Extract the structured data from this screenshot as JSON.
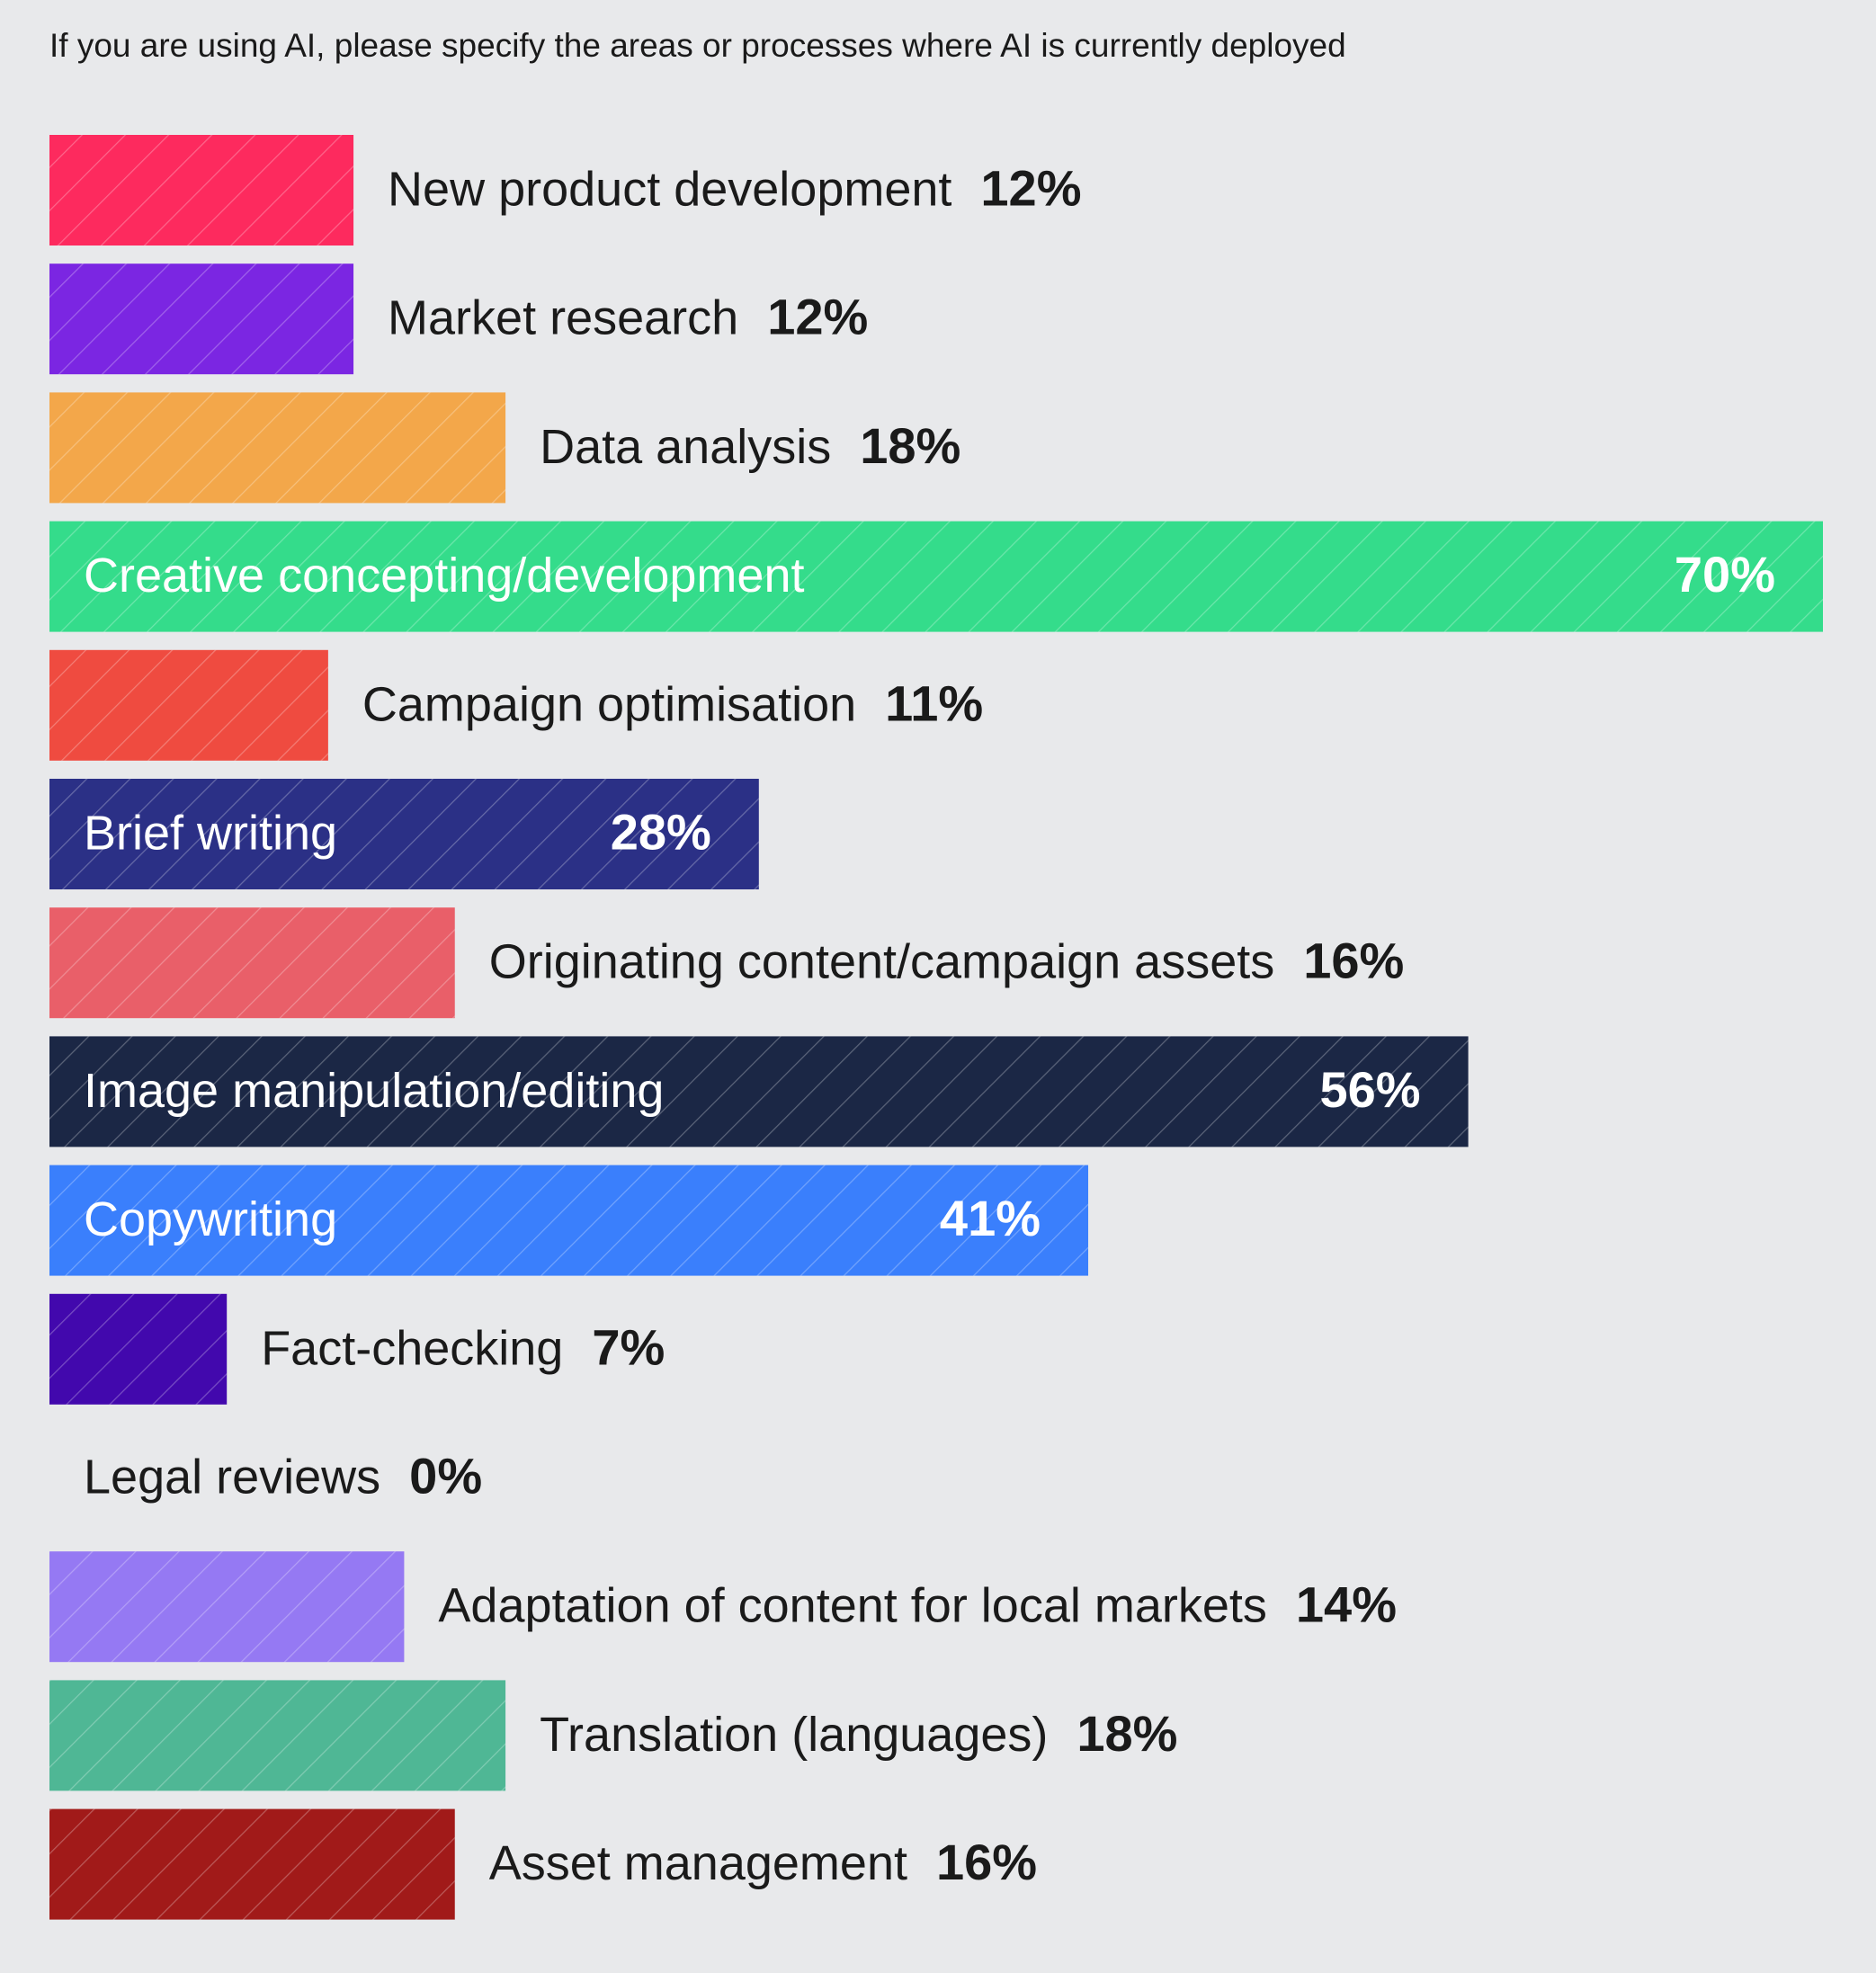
{
  "chart_data": {
    "type": "bar",
    "orientation": "horizontal",
    "title": "If you are using AI, please specify the areas or processes where AI is currently deployed",
    "unit": "%",
    "xlim": [
      0,
      70
    ],
    "grid": false,
    "legend": "none",
    "categories": [
      "New product development",
      "Market research",
      "Data analysis",
      "Creative concepting/development",
      "Campaign optimisation",
      "Brief writing",
      "Originating content/campaign assets",
      "Image manipulation/editing",
      "Copywriting",
      "Fact-checking",
      "Legal reviews",
      "Adaptation of content for local markets",
      "Translation (languages)",
      "Asset management"
    ],
    "values": [
      12,
      12,
      18,
      70,
      11,
      28,
      16,
      56,
      41,
      7,
      0,
      14,
      18,
      16
    ],
    "value_labels": [
      "12%",
      "12%",
      "18%",
      "70%",
      "11%",
      "28%",
      "16%",
      "56%",
      "41%",
      "7%",
      "0%",
      "14%",
      "18%",
      "16%"
    ],
    "colors": [
      "#fd2a5e",
      "#7b26e2",
      "#f3a74a",
      "#34dc8b",
      "#ef4b40",
      "#2b3086",
      "#e95f69",
      "#1b2745",
      "#3a7ffc",
      "#4208ad",
      "#e8e9eb",
      "#9579f3",
      "#4fb795",
      "#a11a19"
    ],
    "label_inside": [
      false,
      false,
      false,
      true,
      false,
      true,
      false,
      true,
      true,
      false,
      false,
      false,
      false,
      false
    ]
  }
}
